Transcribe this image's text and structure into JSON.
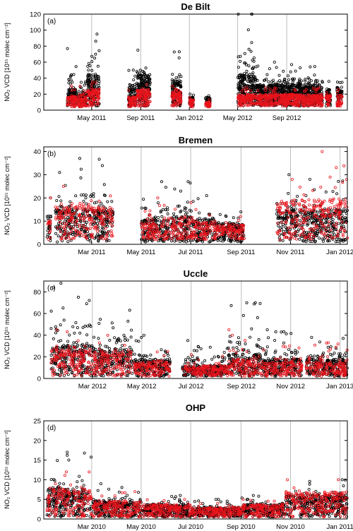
{
  "chart_data": [
    {
      "type": "scatter",
      "title": "De Bilt",
      "panel": "(a)",
      "ylabel": "NO₂ VCD [10¹⁵ molec cm⁻²]",
      "ylim": [
        0,
        120
      ],
      "yticks": [
        0,
        20,
        40,
        60,
        80,
        100,
        120
      ],
      "xlim": [
        "2011-01-01",
        "2013-01-31"
      ],
      "xticks": [
        {
          "date": "2011-05-01",
          "label": "May 2011"
        },
        {
          "date": "2011-09-01",
          "label": "Sep 2011"
        },
        {
          "date": "2012-01-01",
          "label": "Jan 2012"
        },
        {
          "date": "2012-05-01",
          "label": "May 2012"
        },
        {
          "date": "2012-09-01",
          "label": "Sep 2012"
        }
      ],
      "grid": "vertical",
      "series": [
        {
          "color": "#000000",
          "marker": "open-circle"
        },
        {
          "color": "#e8141c",
          "marker": "open-circle"
        }
      ],
      "clusters": [
        {
          "start": "2011-03-01",
          "end": "2011-03-25",
          "black": [
            5,
            18,
            77
          ],
          "red": [
            4,
            12,
            30
          ]
        },
        {
          "start": "2011-03-28",
          "end": "2011-04-18",
          "black": [
            5,
            15,
            35
          ],
          "red": [
            4,
            12,
            30
          ]
        },
        {
          "start": "2011-04-20",
          "end": "2011-05-20",
          "black": [
            5,
            30,
            95
          ],
          "red": [
            5,
            18,
            35
          ]
        },
        {
          "start": "2011-08-01",
          "end": "2011-08-20",
          "black": [
            5,
            20,
            50
          ],
          "red": [
            4,
            12,
            25
          ]
        },
        {
          "start": "2011-08-22",
          "end": "2011-09-25",
          "black": [
            5,
            30,
            75
          ],
          "red": [
            5,
            18,
            32
          ]
        },
        {
          "start": "2011-11-18",
          "end": "2011-12-12",
          "black": [
            5,
            25,
            73
          ],
          "red": [
            5,
            18,
            30
          ]
        },
        {
          "start": "2012-01-01",
          "end": "2012-01-12",
          "black": [
            5,
            12,
            20
          ],
          "red": [
            4,
            10,
            16
          ]
        },
        {
          "start": "2012-02-10",
          "end": "2012-02-22",
          "black": [
            5,
            12,
            18
          ],
          "red": [
            4,
            8,
            13
          ]
        },
        {
          "start": "2012-05-01",
          "end": "2012-06-15",
          "black": [
            5,
            30,
            122
          ],
          "red": [
            5,
            14,
            28
          ]
        },
        {
          "start": "2012-06-16",
          "end": "2012-11-30",
          "black": [
            5,
            22,
            60
          ],
          "red": [
            5,
            14,
            28
          ]
        },
        {
          "start": "2012-12-08",
          "end": "2012-12-20",
          "black": [
            5,
            18,
            36
          ],
          "red": [
            5,
            14,
            22
          ]
        },
        {
          "start": "2013-01-05",
          "end": "2013-01-18",
          "black": [
            5,
            20,
            35
          ],
          "red": [
            5,
            14,
            26
          ]
        }
      ]
    },
    {
      "type": "scatter",
      "title": "Bremen",
      "panel": "(b)",
      "ylabel": "NO₂ VCD [10¹⁵ molec cm⁻²]",
      "ylim": [
        0,
        42
      ],
      "yticks": [
        0,
        10,
        20,
        30,
        40
      ],
      "xlim": [
        "2011-01-01",
        "2012-01-10"
      ],
      "xticks": [
        {
          "date": "2011-03-01",
          "label": "Mar 2011"
        },
        {
          "date": "2011-05-01",
          "label": "May 2011"
        },
        {
          "date": "2011-07-01",
          "label": "Jul 2011"
        },
        {
          "date": "2011-09-01",
          "label": "Sep 2011"
        },
        {
          "date": "2011-11-01",
          "label": "Nov 2011"
        },
        {
          "date": "2012-01-01",
          "label": "Jan 2012"
        }
      ],
      "grid": "vertical",
      "series": [
        {
          "color": "#000000",
          "marker": "open-circle"
        },
        {
          "color": "#e8141c",
          "marker": "open-circle"
        }
      ],
      "clusters": [
        {
          "start": "2011-01-05",
          "end": "2011-01-10",
          "black": [
            1,
            8,
            20
          ],
          "red": [
            2,
            8,
            20
          ]
        },
        {
          "start": "2011-01-15",
          "end": "2011-03-28",
          "black": [
            1,
            10,
            37
          ],
          "red": [
            2,
            11,
            25
          ]
        },
        {
          "start": "2011-05-01",
          "end": "2011-06-05",
          "black": [
            1,
            7,
            27
          ],
          "red": [
            2,
            7,
            20
          ]
        },
        {
          "start": "2011-06-06",
          "end": "2011-07-05",
          "black": [
            1,
            8,
            27
          ],
          "red": [
            2,
            8,
            18
          ]
        },
        {
          "start": "2011-07-06",
          "end": "2011-08-01",
          "black": [
            1,
            7,
            21
          ],
          "red": [
            2,
            7,
            15
          ]
        },
        {
          "start": "2011-08-02",
          "end": "2011-09-05",
          "black": [
            1,
            6,
            14
          ],
          "red": [
            2,
            6,
            12
          ]
        },
        {
          "start": "2011-10-15",
          "end": "2011-11-10",
          "black": [
            1,
            10,
            30
          ],
          "red": [
            2,
            12,
            28
          ]
        },
        {
          "start": "2011-11-11",
          "end": "2012-01-10",
          "black": [
            1,
            10,
            28
          ],
          "red": [
            2,
            13,
            40
          ]
        }
      ]
    },
    {
      "type": "scatter",
      "title": "Uccle",
      "panel": "(c)",
      "ylabel": "NO₂ VCD [10¹⁵ molec cm⁻²]",
      "ylim": [
        0,
        90
      ],
      "yticks": [
        0,
        20,
        40,
        60,
        80
      ],
      "xlim": [
        "2012-01-01",
        "2013-01-10"
      ],
      "xticks": [
        {
          "date": "2012-03-01",
          "label": "Mar 2012"
        },
        {
          "date": "2012-05-01",
          "label": "May 2012"
        },
        {
          "date": "2012-07-01",
          "label": "Jul 2012"
        },
        {
          "date": "2012-09-01",
          "label": "Sep 2012"
        },
        {
          "date": "2012-11-01",
          "label": "Nov 2012"
        },
        {
          "date": "2013-01-01",
          "label": "Jan 2013"
        }
      ],
      "grid": "vertical",
      "series": [
        {
          "color": "#000000",
          "marker": "open-circle"
        },
        {
          "color": "#e8141c",
          "marker": "open-circle"
        }
      ],
      "clusters": [
        {
          "start": "2012-01-10",
          "end": "2012-03-01",
          "black": [
            2,
            20,
            88
          ],
          "red": [
            2,
            18,
            45
          ]
        },
        {
          "start": "2012-03-02",
          "end": "2012-04-20",
          "black": [
            2,
            18,
            63
          ],
          "red": [
            2,
            16,
            40
          ]
        },
        {
          "start": "2012-04-21",
          "end": "2012-06-05",
          "black": [
            2,
            12,
            40
          ],
          "red": [
            2,
            10,
            25
          ]
        },
        {
          "start": "2012-06-20",
          "end": "2012-08-15",
          "black": [
            2,
            8,
            35
          ],
          "red": [
            2,
            8,
            22
          ]
        },
        {
          "start": "2012-08-16",
          "end": "2012-09-25",
          "black": [
            2,
            15,
            70
          ],
          "red": [
            2,
            12,
            45
          ]
        },
        {
          "start": "2012-09-26",
          "end": "2012-11-15",
          "black": [
            2,
            12,
            45
          ],
          "red": [
            2,
            10,
            30
          ]
        },
        {
          "start": "2012-11-20",
          "end": "2013-01-10",
          "black": [
            2,
            12,
            38
          ],
          "red": [
            2,
            10,
            33
          ]
        }
      ]
    },
    {
      "type": "scatter",
      "title": "OHP",
      "panel": "(d)",
      "ylabel": "NO₂ VCD [10¹⁵ molec cm⁻²]",
      "ylim": [
        0,
        25
      ],
      "yticks": [
        0,
        5,
        10,
        15,
        20,
        25
      ],
      "xlim": [
        "2010-01-01",
        "2011-01-10"
      ],
      "xticks": [
        {
          "date": "2010-03-01",
          "label": "Mar 2010"
        },
        {
          "date": "2010-05-01",
          "label": "May 2010"
        },
        {
          "date": "2010-07-01",
          "label": "Jul 2010"
        },
        {
          "date": "2010-09-01",
          "label": "Sep 2010"
        },
        {
          "date": "2010-11-01",
          "label": "Nov 2010"
        },
        {
          "date": "2011-01-01",
          "label": "Jan 2011"
        }
      ],
      "grid": "vertical",
      "series": [
        {
          "color": "#000000",
          "marker": "open-circle"
        },
        {
          "color": "#e8141c",
          "marker": "open-circle"
        }
      ],
      "clusters": [
        {
          "start": "2010-01-05",
          "end": "2010-03-01",
          "black": [
            0.5,
            5,
            17
          ],
          "red": [
            0.5,
            5,
            12
          ]
        },
        {
          "start": "2010-03-02",
          "end": "2010-05-01",
          "black": [
            0.5,
            3,
            9
          ],
          "red": [
            0.5,
            3,
            7
          ]
        },
        {
          "start": "2010-05-02",
          "end": "2010-07-01",
          "black": [
            0.5,
            2.5,
            6
          ],
          "red": [
            0.5,
            2.5,
            5
          ]
        },
        {
          "start": "2010-07-02",
          "end": "2010-09-01",
          "black": [
            0.5,
            2,
            5
          ],
          "red": [
            0.5,
            2,
            4
          ]
        },
        {
          "start": "2010-09-02",
          "end": "2010-10-25",
          "black": [
            0.5,
            2.5,
            6
          ],
          "red": [
            0.5,
            2.5,
            5
          ]
        },
        {
          "start": "2010-10-26",
          "end": "2011-01-10",
          "black": [
            0.5,
            4,
            10
          ],
          "red": [
            0.5,
            4.5,
            10
          ]
        }
      ]
    }
  ]
}
